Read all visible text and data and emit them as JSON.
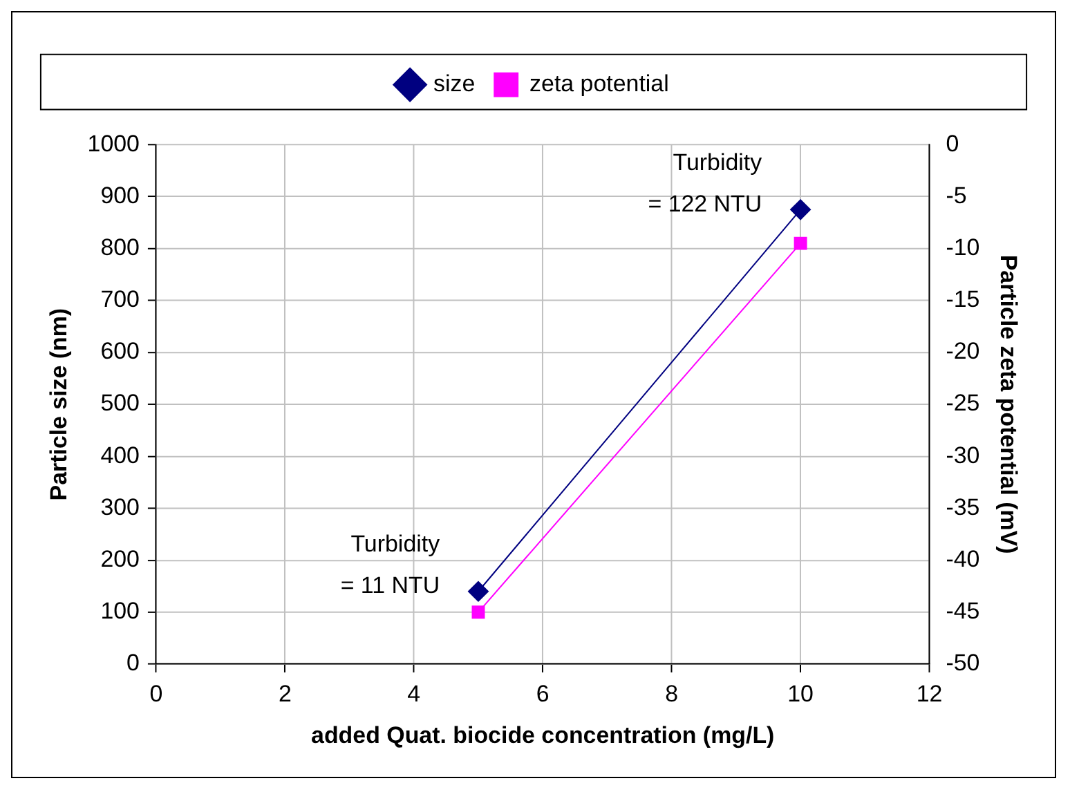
{
  "chart_data": {
    "type": "line",
    "xlabel": "added Quat. biocide concentration (mg/L)",
    "ylabel": "Particle size (nm)",
    "y2label": "Particle zeta potential (mV)",
    "x": [
      5,
      10
    ],
    "series": [
      {
        "name": "size",
        "color": "#000080",
        "values": [
          140,
          875
        ],
        "marker": "diamond"
      },
      {
        "name": "zeta potential",
        "color": "#ff00ff",
        "values": [
          -45,
          -9.5
        ],
        "marker": "square",
        "axis": "y2"
      }
    ],
    "xlim": [
      0,
      12
    ],
    "xticks": [
      0,
      2,
      4,
      6,
      8,
      10,
      12
    ],
    "ylim": [
      0,
      1000
    ],
    "yticks": [
      0,
      100,
      200,
      300,
      400,
      500,
      600,
      700,
      800,
      900,
      1000
    ],
    "y2lim": [
      -50,
      0
    ],
    "y2ticks": [
      -50,
      -45,
      -40,
      -35,
      -30,
      -25,
      -20,
      -15,
      -10,
      -5,
      0
    ],
    "annotations": [
      {
        "text": "Turbidity\n= 11 NTU",
        "x": 5,
        "y": 140
      },
      {
        "text": "Turbidity\n= 122 NTU",
        "x": 10,
        "y": 875
      }
    ],
    "grid": true,
    "legend": "top",
    "line_style": "solid"
  }
}
